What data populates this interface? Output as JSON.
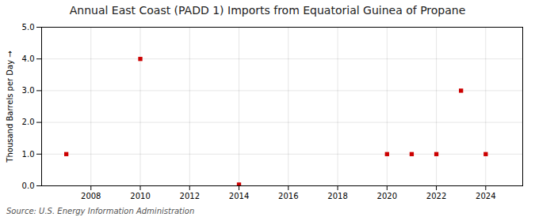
{
  "chart_data": {
    "type": "scatter",
    "title": "Annual East Coast (PADD 1) Imports from Equatorial Guinea of Propane",
    "ylabel": "Thousand Barrels per Day",
    "source": "Source: U.S. Energy Information Administration",
    "x": [
      2007,
      2010,
      2014,
      2020,
      2021,
      2022,
      2023,
      2024
    ],
    "values": [
      1.0,
      4.0,
      0.04,
      1.0,
      1.0,
      1.0,
      3.0,
      1.0
    ],
    "color": "#cc0000",
    "marker": "square",
    "xlim": [
      2006.0,
      2025.5
    ],
    "xticks": [
      2008,
      2010,
      2012,
      2014,
      2016,
      2018,
      2020,
      2022,
      2024
    ],
    "ylim": [
      0.0,
      5.0
    ],
    "yticks": [
      {
        "value": 0.0,
        "label": "0.0"
      },
      {
        "value": 1.0,
        "label": "1.0"
      },
      {
        "value": 2.0,
        "label": "2.0"
      },
      {
        "value": 3.0,
        "label": "3.0"
      },
      {
        "value": 4.0,
        "label": "4.0"
      },
      {
        "value": 5.0,
        "label": "5.0"
      }
    ],
    "grid": true
  }
}
